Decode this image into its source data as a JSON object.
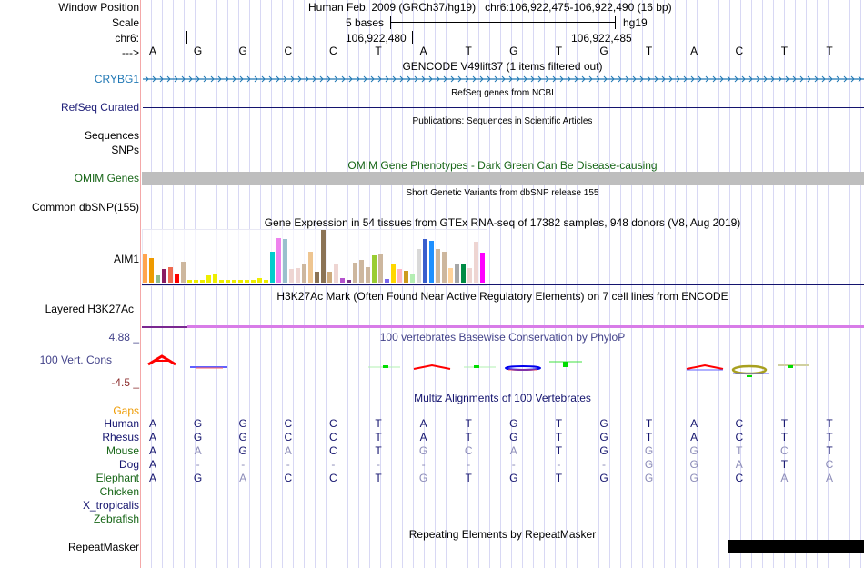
{
  "header": {
    "window_position_label": "Window Position",
    "scale_label": "Scale",
    "chrom_label": "chr6:",
    "strand_label": "--->",
    "assembly_title": "Human Feb. 2009 (GRCh37/hg19)   chr6:106,922,475-106,922,490 (16 bp)",
    "scale_text": "5 bases",
    "scale_db": "hg19",
    "coord_left": "106,922,480",
    "coord_right": "106,922,485",
    "bases": [
      "A",
      "G",
      "G",
      "C",
      "C",
      "T",
      "A",
      "T",
      "G",
      "T",
      "G",
      "T",
      "A",
      "C",
      "T",
      "T"
    ]
  },
  "tracks": {
    "gencode": {
      "title": "GENCODE V49lift37 (1 items filtered out)",
      "label": "CRYBG1",
      "color": "#1f77b4"
    },
    "refseq": {
      "title": "RefSeq genes from NCBI",
      "label": "RefSeq Curated"
    },
    "publications": {
      "title": "Publications: Sequences in Scientific Articles",
      "label_1": "Sequences",
      "label_2": "SNPs"
    },
    "omim": {
      "title": "OMIM Gene Phenotypes - Dark Green Can Be Disease-causing",
      "label": "OMIM Genes"
    },
    "dbsnp": {
      "title": "Short Genetic Variants from dbSNP release 155",
      "label": "Common dbSNP(155)"
    },
    "gtex": {
      "title": "Gene Expression in 54 tissues from GTEx RNA-seq of 17382 samples, 948 donors (V8, Aug 2019)",
      "label": "AIM1",
      "bars": [
        {
          "v": 0.53,
          "c": "#ffa54f"
        },
        {
          "v": 0.47,
          "c": "#ee9a00"
        },
        {
          "v": 0.13,
          "c": "#8fbc8f"
        },
        {
          "v": 0.25,
          "c": "#8b1c62"
        },
        {
          "v": 0.3,
          "c": "#ee6a50"
        },
        {
          "v": 0.18,
          "c": "#ff0000"
        },
        {
          "v": 0.4,
          "c": "#cdb79e"
        },
        {
          "v": 0.05,
          "c": "#eeee00"
        },
        {
          "v": 0.05,
          "c": "#eeee00"
        },
        {
          "v": 0.05,
          "c": "#eeee00"
        },
        {
          "v": 0.13,
          "c": "#eeee00"
        },
        {
          "v": 0.15,
          "c": "#eeee00"
        },
        {
          "v": 0.06,
          "c": "#eeee00"
        },
        {
          "v": 0.06,
          "c": "#eeee00"
        },
        {
          "v": 0.05,
          "c": "#eeee00"
        },
        {
          "v": 0.06,
          "c": "#eeee00"
        },
        {
          "v": 0.05,
          "c": "#eeee00"
        },
        {
          "v": 0.05,
          "c": "#eeee00"
        },
        {
          "v": 0.08,
          "c": "#eeee00"
        },
        {
          "v": 0.06,
          "c": "#eeee00"
        },
        {
          "v": 0.58,
          "c": "#00cdcd"
        },
        {
          "v": 0.85,
          "c": "#ee82ee"
        },
        {
          "v": 0.82,
          "c": "#9ac0cd"
        },
        {
          "v": 0.25,
          "c": "#eed5d2"
        },
        {
          "v": 0.28,
          "c": "#eed5d2"
        },
        {
          "v": 0.35,
          "c": "#cdb79e"
        },
        {
          "v": 0.58,
          "c": "#eec591"
        },
        {
          "v": 0.21,
          "c": "#8b7355"
        },
        {
          "v": 1.0,
          "c": "#8b7355"
        },
        {
          "v": 0.21,
          "c": "#cdaa7d"
        },
        {
          "v": 0.35,
          "c": "#eed5d2"
        },
        {
          "v": 0.08,
          "c": "#b452cd"
        },
        {
          "v": 0.06,
          "c": "#7a378b"
        },
        {
          "v": 0.38,
          "c": "#cdb79e"
        },
        {
          "v": 0.43,
          "c": "#cdb79e"
        },
        {
          "v": 0.3,
          "c": "#cdb79e"
        },
        {
          "v": 0.52,
          "c": "#9acd32"
        },
        {
          "v": 0.55,
          "c": "#cdb79e"
        },
        {
          "v": 0.07,
          "c": "#7b68ee"
        },
        {
          "v": 0.35,
          "c": "#ffd700"
        },
        {
          "v": 0.25,
          "c": "#ffb6c1"
        },
        {
          "v": 0.23,
          "c": "#cd9b1d"
        },
        {
          "v": 0.15,
          "c": "#b4eeb4"
        },
        {
          "v": 0.63,
          "c": "#d9d9d9"
        },
        {
          "v": 0.82,
          "c": "#3a5fcd"
        },
        {
          "v": 0.8,
          "c": "#1e90ff"
        },
        {
          "v": 0.63,
          "c": "#cdb79e"
        },
        {
          "v": 0.58,
          "c": "#cdb79e"
        },
        {
          "v": 0.27,
          "c": "#ffd39b"
        },
        {
          "v": 0.35,
          "c": "#a6a6a6"
        },
        {
          "v": 0.37,
          "c": "#008b45"
        },
        {
          "v": 0.28,
          "c": "#eed5d2"
        },
        {
          "v": 0.78,
          "c": "#eed5d2"
        },
        {
          "v": 0.57,
          "c": "#ff00ff"
        }
      ]
    },
    "h3k27ac": {
      "title": "H3K27Ac Mark (Often Found Near Active Regulatory Elements) on 7 cell lines from ENCODE",
      "label": "Layered H3K27Ac"
    },
    "phylop": {
      "title": "100 vertebrates Basewise Conservation by PhyloP",
      "label": "100 Vert. Cons",
      "ymax": "4.88 _",
      "ymin": "-4.5 _"
    },
    "multiz": {
      "title": "Multiz Alignments of 100 Vertebrates",
      "gaps_label": "Gaps",
      "species": [
        {
          "name": "Human",
          "cls": "navy",
          "seq": [
            "A",
            "G",
            "G",
            "C",
            "C",
            "T",
            "A",
            "T",
            "G",
            "T",
            "G",
            "T",
            "A",
            "C",
            "T",
            "T"
          ],
          "light": []
        },
        {
          "name": "Rhesus",
          "cls": "navy",
          "seq": [
            "A",
            "G",
            "G",
            "C",
            "C",
            "T",
            "A",
            "T",
            "G",
            "T",
            "G",
            "T",
            "A",
            "C",
            "T",
            "T"
          ],
          "light": []
        },
        {
          "name": "Mouse",
          "cls": "green",
          "seq": [
            "A",
            "A",
            "G",
            "A",
            "C",
            "T",
            "G",
            "C",
            "A",
            "T",
            "G",
            "G",
            "G",
            "T",
            "C",
            "T"
          ],
          "light": [
            1,
            3,
            6,
            7,
            8,
            11,
            12,
            13,
            14
          ]
        },
        {
          "name": "Dog",
          "cls": "navy",
          "seq": [
            "A",
            "-",
            "-",
            "-",
            "-",
            "-",
            "-",
            "-",
            "-",
            "-",
            "-",
            "G",
            "G",
            "A",
            "T",
            "C"
          ],
          "light": [
            1,
            2,
            3,
            4,
            5,
            6,
            7,
            8,
            9,
            10,
            11,
            12,
            13,
            15
          ]
        },
        {
          "name": "Elephant",
          "cls": "green",
          "seq": [
            "A",
            "G",
            "A",
            "C",
            "C",
            "T",
            "G",
            "T",
            "G",
            "T",
            "G",
            "G",
            "G",
            "C",
            "A",
            "A"
          ],
          "light": [
            2,
            6,
            11,
            12,
            14,
            15
          ]
        },
        {
          "name": "Chicken",
          "cls": "green",
          "seq": [],
          "light": []
        },
        {
          "name": "X_tropicalis",
          "cls": "navy",
          "seq": [],
          "light": []
        },
        {
          "name": "Zebrafish",
          "cls": "green",
          "seq": [],
          "light": []
        }
      ]
    },
    "repeatmasker": {
      "title": "Repeating Elements by RepeatMasker",
      "label": "RepeatMasker"
    }
  }
}
